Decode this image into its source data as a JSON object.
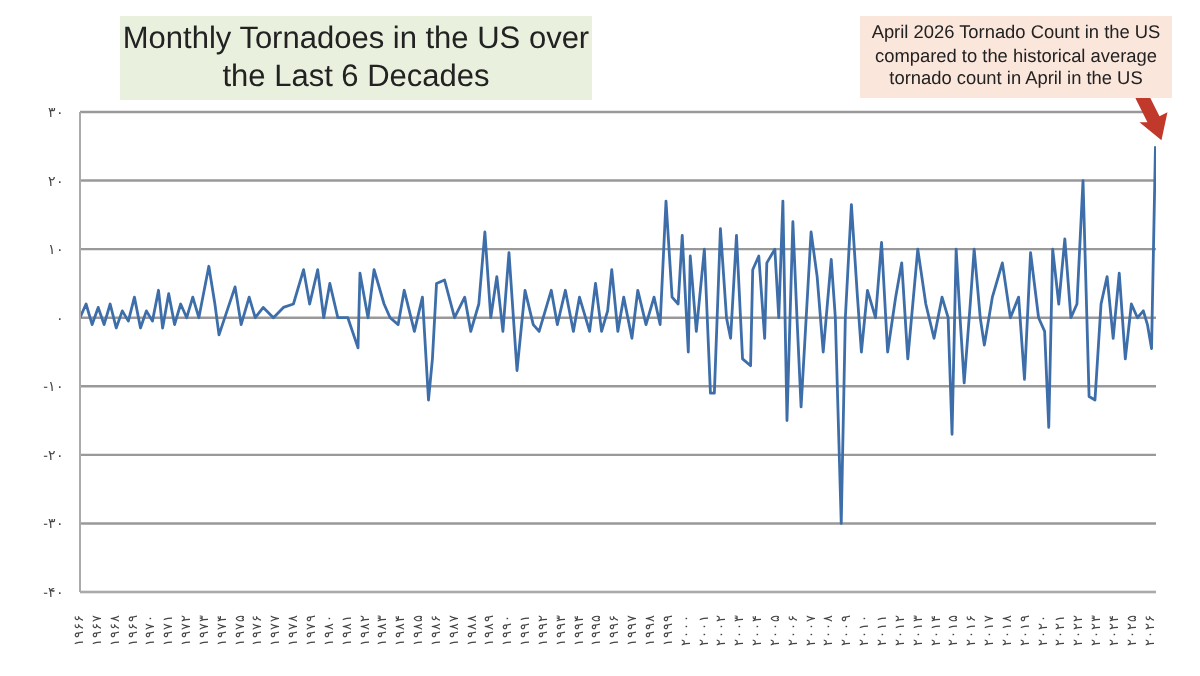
{
  "chart_data": {
    "type": "line",
    "title": "Monthly Tornadoes in the US over the Last 6 Decades",
    "annotations": [
      "April 2026 Tornado Count in the US compared to the historical average tornado count in April in the US"
    ],
    "x": [
      1966.0,
      1966.34,
      1966.68,
      1967.02,
      1967.35,
      1967.69,
      1968.03,
      1968.37,
      1968.71,
      1969.05,
      1969.39,
      1969.72,
      1970.06,
      1970.4,
      1970.63,
      1970.97,
      1971.3,
      1971.64,
      1971.98,
      1972.32,
      1972.66,
      1973.22,
      1973.56,
      1973.79,
      1974.24,
      1974.69,
      1975.03,
      1975.48,
      1975.82,
      1976.27,
      1976.84,
      1977.4,
      1977.96,
      1978.53,
      1978.87,
      1979.32,
      1979.66,
      1980.0,
      1980.45,
      1981.01,
      1981.58,
      1981.69,
      1982.14,
      1982.48,
      1983.04,
      1983.38,
      1983.83,
      1984.17,
      1984.74,
      1985.19,
      1985.53,
      1985.75,
      1985.98,
      1986.43,
      1986.99,
      1987.56,
      1987.9,
      1988.35,
      1988.69,
      1989.02,
      1989.36,
      1989.7,
      1990.04,
      1990.49,
      1990.94,
      1991.4,
      1991.73,
      1992.41,
      1992.75,
      1993.2,
      1993.65,
      1993.99,
      1994.56,
      1994.89,
      1995.23,
      1995.57,
      1995.8,
      1996.14,
      1996.47,
      1996.93,
      1997.26,
      1997.72,
      1998.17,
      1998.51,
      1998.84,
      1999.18,
      1999.52,
      1999.75,
      2000.09,
      2000.2,
      2000.54,
      2000.99,
      2001.33,
      2001.55,
      2001.89,
      2002.23,
      2002.46,
      2002.79,
      2003.13,
      2003.58,
      2003.7,
      2004.04,
      2004.37,
      2004.49,
      2004.94,
      2005.16,
      2005.39,
      2005.62,
      2005.95,
      2006.18,
      2006.41,
      2006.97,
      2007.31,
      2007.65,
      2008.1,
      2008.33,
      2008.66,
      2008.89,
      2009.23,
      2009.57,
      2009.79,
      2010.13,
      2010.58,
      2010.92,
      2011.26,
      2011.71,
      2012.05,
      2012.39,
      2012.95,
      2013.4,
      2013.86,
      2014.31,
      2014.65,
      2014.87,
      2015.1,
      2015.32,
      2015.55,
      2015.89,
      2016.11,
      2016.45,
      2016.68,
      2017.13,
      2017.69,
      2018.14,
      2018.6,
      2018.93,
      2019.27,
      2019.72,
      2020.06,
      2020.29,
      2020.51,
      2020.85,
      2021.19,
      2021.53,
      2021.87,
      2022.21,
      2022.55,
      2022.88,
      2023.22,
      2023.56,
      2023.9,
      2024.24,
      2024.58,
      2024.92,
      2025.26,
      2025.59,
      2025.82,
      2026.05,
      2026.27
    ],
    "series": [
      {
        "color": "#3d6eaa",
        "values": [
          0,
          2,
          -1,
          1.5,
          -1,
          2,
          -1.5,
          1,
          -0.5,
          3,
          -1.5,
          1,
          -0.5,
          4,
          -1.5,
          3.5,
          -1,
          2,
          0,
          3,
          0,
          7.5,
          2,
          -2.5,
          1,
          4.5,
          -1,
          3,
          0,
          1.5,
          0,
          1.5,
          2,
          7,
          2,
          7,
          0,
          5,
          0,
          0,
          -4.4,
          6.5,
          0,
          7,
          2,
          0,
          -1,
          4,
          -2,
          3,
          -12,
          -6,
          5,
          5.5,
          0,
          3,
          -2,
          2,
          12.5,
          0,
          6,
          -2,
          9.5,
          -7.7,
          4,
          -1,
          -2,
          4,
          -1,
          4,
          -2,
          3,
          -2,
          5,
          -2,
          1,
          7,
          -2,
          3,
          -3,
          4,
          -1,
          3,
          -1,
          17,
          3,
          2,
          12,
          -5,
          9,
          -2,
          10,
          -11,
          -11,
          13,
          0,
          -3,
          12,
          -6,
          -7,
          7,
          9,
          -3,
          8,
          10,
          0,
          17,
          -15,
          14,
          0,
          -13,
          12.5,
          6,
          -5,
          8.5,
          0,
          -30,
          0,
          16.5,
          3,
          -5,
          4,
          0,
          11,
          -5,
          3,
          8,
          -6,
          10,
          2,
          -3,
          3,
          0,
          -17,
          10,
          0,
          -9.5,
          2,
          10,
          0,
          -4,
          3,
          8,
          0,
          3,
          -9,
          9.5,
          0,
          -2,
          -16,
          10,
          2,
          11.5,
          0,
          2,
          20,
          -11.5,
          -12,
          2,
          6,
          -3,
          6.5,
          -6,
          2,
          0,
          1,
          -1,
          -4.5,
          25
        ]
      }
    ],
    "xlim": [
      1966,
      2026.3
    ],
    "xticks": [
      {
        "value": 1966,
        "label": "۱۹۶۶"
      },
      {
        "value": 1967,
        "label": "۱۹۶۷"
      },
      {
        "value": 1968,
        "label": "۱۹۶۸"
      },
      {
        "value": 1969,
        "label": "۱۹۶۹"
      },
      {
        "value": 1970,
        "label": "۱۹۷۰"
      },
      {
        "value": 1971,
        "label": "۱۹۷۱"
      },
      {
        "value": 1972,
        "label": "۱۹۷۲"
      },
      {
        "value": 1973,
        "label": "۱۹۷۳"
      },
      {
        "value": 1974,
        "label": "۱۹۷۴"
      },
      {
        "value": 1975,
        "label": "۱۹۷۵"
      },
      {
        "value": 1976,
        "label": "۱۹۷۶"
      },
      {
        "value": 1977,
        "label": "۱۹۷۷"
      },
      {
        "value": 1978,
        "label": "۱۹۷۸"
      },
      {
        "value": 1979,
        "label": "۱۹۷۹"
      },
      {
        "value": 1980,
        "label": "۱۹۸۰"
      },
      {
        "value": 1981,
        "label": "۱۹۸۱"
      },
      {
        "value": 1982,
        "label": "۱۹۸۲"
      },
      {
        "value": 1983,
        "label": "۱۹۸۳"
      },
      {
        "value": 1984,
        "label": "۱۹۸۴"
      },
      {
        "value": 1985,
        "label": "۱۹۸۵"
      },
      {
        "value": 1986,
        "label": "۱۹۸۶"
      },
      {
        "value": 1987,
        "label": "۱۹۸۷"
      },
      {
        "value": 1988,
        "label": "۱۹۸۸"
      },
      {
        "value": 1989,
        "label": "۱۹۸۹"
      },
      {
        "value": 1990,
        "label": "۱۹۹۰"
      },
      {
        "value": 1991,
        "label": "۱۹۹۱"
      },
      {
        "value": 1992,
        "label": "۱۹۹۲"
      },
      {
        "value": 1993,
        "label": "۱۹۹۳"
      },
      {
        "value": 1994,
        "label": "۱۹۹۴"
      },
      {
        "value": 1995,
        "label": "۱۹۹۵"
      },
      {
        "value": 1996,
        "label": "۱۹۹۶"
      },
      {
        "value": 1997,
        "label": "۱۹۹۷"
      },
      {
        "value": 1998,
        "label": "۱۹۹۸"
      },
      {
        "value": 1999,
        "label": "۱۹۹۹"
      },
      {
        "value": 2000,
        "label": "۲۰۰۰"
      },
      {
        "value": 2001,
        "label": "۲۰۰۱"
      },
      {
        "value": 2002,
        "label": "۲۰۰۲"
      },
      {
        "value": 2003,
        "label": "۲۰۰۳"
      },
      {
        "value": 2004,
        "label": "۲۰۰۴"
      },
      {
        "value": 2005,
        "label": "۲۰۰۵"
      },
      {
        "value": 2006,
        "label": "۲۰۰۶"
      },
      {
        "value": 2007,
        "label": "۲۰۰۷"
      },
      {
        "value": 2008,
        "label": "۲۰۰۸"
      },
      {
        "value": 2009,
        "label": "۲۰۰۹"
      },
      {
        "value": 2010,
        "label": "۲۰۱۰"
      },
      {
        "value": 2011,
        "label": "۲۰۱۱"
      },
      {
        "value": 2012,
        "label": "۲۰۱۲"
      },
      {
        "value": 2013,
        "label": "۲۰۱۳"
      },
      {
        "value": 2014,
        "label": "۲۰۱۴"
      },
      {
        "value": 2015,
        "label": "۲۰۱۵"
      },
      {
        "value": 2016,
        "label": "۲۰۱۶"
      },
      {
        "value": 2017,
        "label": "۲۰۱۷"
      },
      {
        "value": 2018,
        "label": "۲۰۱۸"
      },
      {
        "value": 2019,
        "label": "۲۰۱۹"
      },
      {
        "value": 2020,
        "label": "۲۰۲۰"
      },
      {
        "value": 2021,
        "label": "۲۰۲۱"
      },
      {
        "value": 2022,
        "label": "۲۰۲۲"
      },
      {
        "value": 2023,
        "label": "۲۰۲۳"
      },
      {
        "value": 2024,
        "label": "۲۰۲۴"
      },
      {
        "value": 2025,
        "label": "۲۰۲۵"
      },
      {
        "value": 2026,
        "label": "۲۰۲۶"
      }
    ],
    "ylim": [
      -40,
      30
    ],
    "yticks": [
      {
        "value": -40,
        "label": "-۴۰"
      },
      {
        "value": -30,
        "label": "-۳۰"
      },
      {
        "value": -20,
        "label": "-۲۰"
      },
      {
        "value": -10,
        "label": "-۱۰"
      },
      {
        "value": 0,
        "label": "۰"
      },
      {
        "value": 10,
        "label": "۱۰"
      },
      {
        "value": 20,
        "label": "۲۰"
      },
      {
        "value": 30,
        "label": "۳۰"
      }
    ],
    "grid": "y",
    "marker": "none",
    "line_style": "solid",
    "legend": false
  }
}
